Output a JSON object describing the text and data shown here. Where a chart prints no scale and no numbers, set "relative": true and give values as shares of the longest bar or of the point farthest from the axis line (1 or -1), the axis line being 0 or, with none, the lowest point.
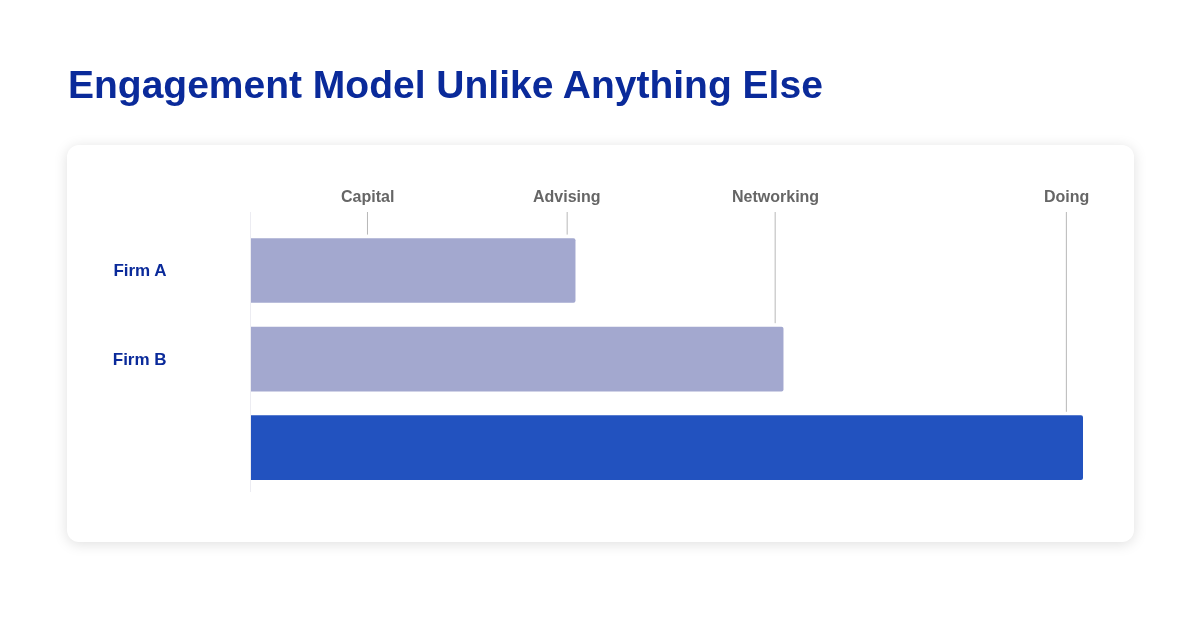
{
  "chart_data": {
    "type": "bar",
    "orientation": "horizontal",
    "relative": true,
    "title": "Engagement Model Unlike Anything Else",
    "categories": [
      "Firm A",
      "Firm B",
      null
    ],
    "values": [
      0.39,
      0.64,
      1
    ],
    "colors": [
      "#a3a8cf",
      "#a3a8cf",
      "#2252bf"
    ],
    "ref_lines": [
      {
        "axis": "x",
        "value": 0.14,
        "label": "Capital",
        "color": "#b8b8b8"
      },
      {
        "axis": "x",
        "value": 0.38,
        "label": "Advising",
        "color": "#b8b8b8"
      },
      {
        "axis": "x",
        "value": 0.63,
        "label": "Networking",
        "color": "#b8b8b8"
      },
      {
        "axis": "x",
        "value": 0.98,
        "label": "Doing",
        "color": "#b8b8b8"
      }
    ]
  }
}
